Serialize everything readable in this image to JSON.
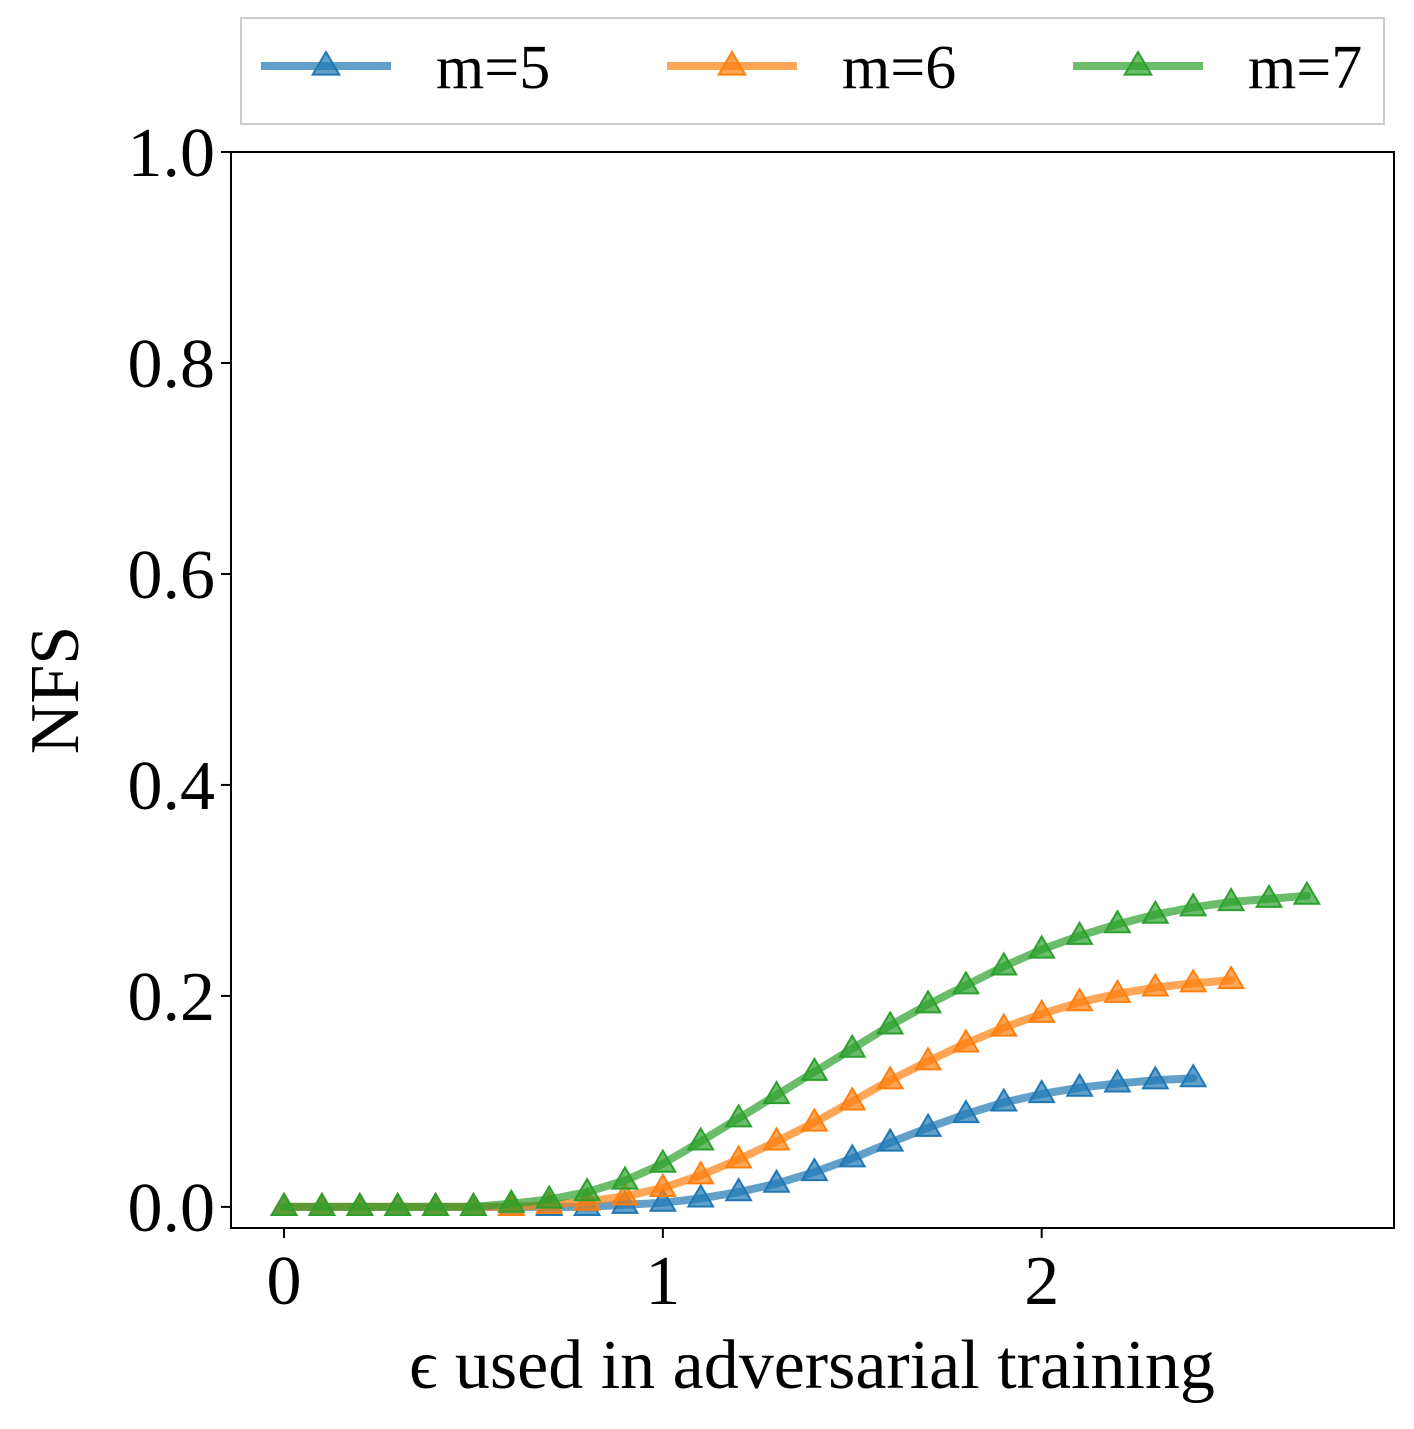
{
  "chart_data": {
    "type": "line",
    "title": "",
    "xlabel": "ϵ used in adversarial training",
    "ylabel": "NFS",
    "xlim": [
      -0.14,
      2.93
    ],
    "ylim": [
      -0.02,
      1.0
    ],
    "xticks": [
      0,
      1,
      2
    ],
    "xtick_labels": [
      "0",
      "1",
      "2"
    ],
    "yticks": [
      0.0,
      0.2,
      0.4,
      0.6,
      0.8,
      1.0
    ],
    "ytick_labels": [
      "0.0",
      "0.2",
      "0.4",
      "0.6",
      "0.8",
      "1.0"
    ],
    "grid": false,
    "legend_position": "top, outside, horizontal",
    "series": [
      {
        "name": "m=5",
        "color": "#1f77b4",
        "marker": "triangle-up",
        "x": [
          0.0,
          0.1,
          0.2,
          0.3,
          0.4,
          0.5,
          0.6,
          0.7,
          0.8,
          0.9,
          1.0,
          1.1,
          1.2,
          1.3,
          1.4,
          1.5,
          1.6,
          1.7,
          1.8,
          1.9,
          2.0,
          2.1,
          2.2,
          2.3,
          2.4
        ],
        "y": [
          0.0,
          0.0,
          0.0,
          0.0,
          0.0,
          0.0,
          0.0,
          0.0,
          0.0,
          0.002,
          0.004,
          0.008,
          0.014,
          0.022,
          0.033,
          0.046,
          0.061,
          0.075,
          0.088,
          0.099,
          0.107,
          0.113,
          0.117,
          0.12,
          0.122
        ]
      },
      {
        "name": "m=6",
        "color": "#ff7f0e",
        "marker": "triangle-up",
        "x": [
          0.0,
          0.1,
          0.2,
          0.3,
          0.4,
          0.5,
          0.6,
          0.7,
          0.8,
          0.9,
          1.0,
          1.1,
          1.2,
          1.3,
          1.4,
          1.5,
          1.6,
          1.7,
          1.8,
          1.9,
          2.0,
          2.1,
          2.2,
          2.3,
          2.4,
          2.5
        ],
        "y": [
          0.0,
          0.0,
          0.0,
          0.0,
          0.0,
          0.0,
          0.0,
          0.002,
          0.005,
          0.01,
          0.018,
          0.03,
          0.045,
          0.062,
          0.08,
          0.1,
          0.12,
          0.138,
          0.155,
          0.17,
          0.183,
          0.194,
          0.202,
          0.208,
          0.212,
          0.215
        ]
      },
      {
        "name": "m=7",
        "color": "#2ca02c",
        "marker": "triangle-up",
        "x": [
          0.0,
          0.1,
          0.2,
          0.3,
          0.4,
          0.5,
          0.6,
          0.7,
          0.8,
          0.9,
          1.0,
          1.1,
          1.2,
          1.3,
          1.4,
          1.5,
          1.6,
          1.7,
          1.8,
          1.9,
          2.0,
          2.1,
          2.2,
          2.3,
          2.4,
          2.5,
          2.6,
          2.7
        ],
        "y": [
          0.0,
          0.0,
          0.0,
          0.0,
          0.0,
          0.0,
          0.003,
          0.007,
          0.014,
          0.025,
          0.041,
          0.062,
          0.084,
          0.106,
          0.128,
          0.15,
          0.172,
          0.192,
          0.21,
          0.228,
          0.244,
          0.257,
          0.268,
          0.277,
          0.284,
          0.289,
          0.292,
          0.295
        ]
      }
    ]
  }
}
